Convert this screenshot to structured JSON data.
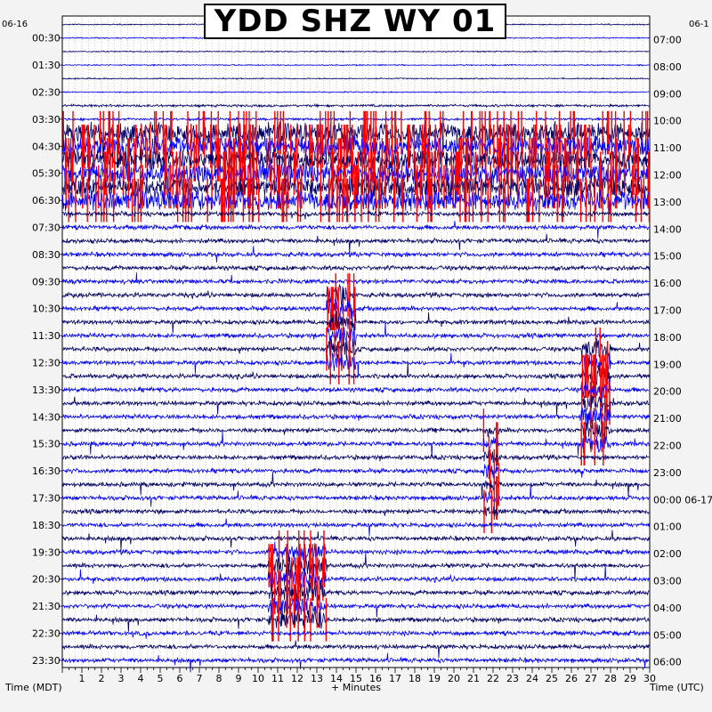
{
  "chart_data": {
    "type": "helicorder",
    "title": "YDD SHZ WY 01",
    "xlabel": "+ Minutes",
    "left_axis_label": "Time (MDT)",
    "right_axis_label": "Time (UTC)",
    "left_date": "06-16",
    "right_date": "06-1",
    "x_ticks": [
      1,
      2,
      3,
      4,
      5,
      6,
      7,
      8,
      9,
      10,
      11,
      12,
      13,
      14,
      15,
      16,
      17,
      18,
      19,
      20,
      21,
      22,
      23,
      24,
      25,
      26,
      27,
      28,
      29,
      30
    ],
    "xlim": [
      0,
      30
    ],
    "left_time_labels": [
      "00:30",
      "01:30",
      "02:30",
      "03:30",
      "04:30",
      "05:30",
      "06:30",
      "07:30",
      "08:30",
      "09:30",
      "10:30",
      "11:30",
      "12:30",
      "13:30",
      "14:30",
      "15:30",
      "16:30",
      "17:30",
      "18:30",
      "19:30",
      "20:30",
      "21:30",
      "22:30",
      "23:30"
    ],
    "right_time_labels": [
      "07:00",
      "08:00",
      "09:00",
      "10:00",
      "11:00",
      "12:00",
      "13:00",
      "14:00",
      "15:00",
      "16:00",
      "17:00",
      "18:00",
      "19:00",
      "20:00",
      "21:00",
      "22:00",
      "23:00",
      "00:00 06-17",
      "01:00",
      "02:00",
      "03:00",
      "04:00",
      "05:00",
      "06:00"
    ],
    "trace_count": 48,
    "trace_colors": [
      "#000066",
      "#0000ff"
    ],
    "clip_color": "#ff0000",
    "grid": true,
    "events": [
      {
        "trace_range": [
          8,
          13
        ],
        "minute_range": [
          0,
          30
        ],
        "amplitude": "high",
        "clipped": true
      },
      {
        "trace_range": [
          20,
          25
        ],
        "minute_range": [
          13.5,
          15
        ],
        "amplitude": "high",
        "clipped": true
      },
      {
        "trace_range": [
          24,
          31
        ],
        "minute_range": [
          26.5,
          28
        ],
        "amplitude": "high",
        "clipped": true
      },
      {
        "trace_range": [
          30,
          36
        ],
        "minute_range": [
          21.5,
          22.3
        ],
        "amplitude": "medium",
        "clipped": true
      },
      {
        "trace_range": [
          39,
          44
        ],
        "minute_range": [
          10.5,
          13.5
        ],
        "amplitude": "high",
        "clipped": true
      }
    ]
  }
}
